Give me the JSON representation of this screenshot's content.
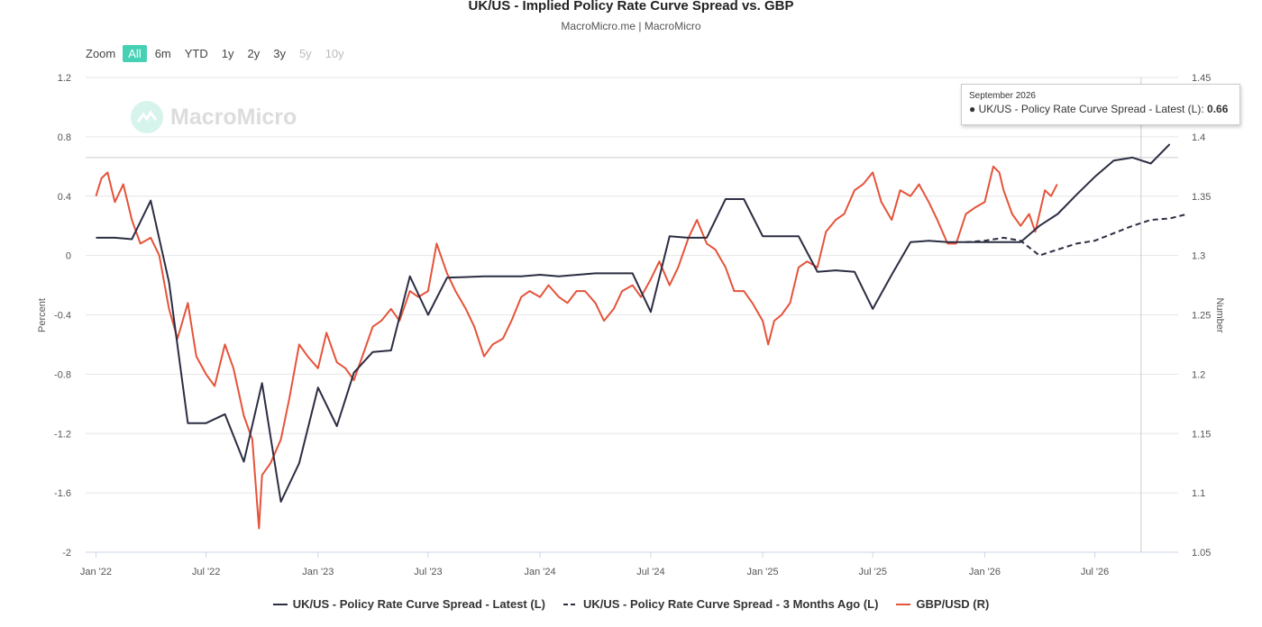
{
  "title": "UK/US - Implied Policy Rate Curve Spread vs. GBP",
  "subtitle": "MacroMicro.me | MacroMicro",
  "watermark": "MacroMicro",
  "zoom": {
    "label": "Zoom",
    "buttons": [
      {
        "label": "All",
        "state": "active"
      },
      {
        "label": "6m",
        "state": "enabled"
      },
      {
        "label": "YTD",
        "state": "enabled"
      },
      {
        "label": "1y",
        "state": "enabled"
      },
      {
        "label": "2y",
        "state": "enabled"
      },
      {
        "label": "3y",
        "state": "enabled"
      },
      {
        "label": "5y",
        "state": "disabled"
      },
      {
        "label": "10y",
        "state": "disabled"
      }
    ]
  },
  "tooltip": {
    "date": "September 2026",
    "series": "UK/US - Policy Rate Curve Spread - Latest (L):",
    "value": "0.66"
  },
  "colors": {
    "latest": "#2b2d42",
    "ago": "#2b2d42",
    "gbp": "#e5533a",
    "accent": "#47d1b4"
  },
  "chart_data": {
    "type": "line",
    "title": "UK/US - Implied Policy Rate Curve Spread vs. GBP",
    "ylabel_left": "Percent",
    "ylabel_right": "Number",
    "ylim_left": [
      -2,
      1.2
    ],
    "ylim_right": [
      1.05,
      1.45
    ],
    "xlim": [
      "2021-12-15",
      "2026-11-15"
    ],
    "grid": true,
    "legend_position": "bottom",
    "yticks_left": [
      "1.2",
      "0.8",
      "0.4",
      "0",
      "-0.4",
      "-0.8",
      "-1.2",
      "-1.6",
      "-2"
    ],
    "yticks_right": [
      "1.45",
      "1.4",
      "1.35",
      "1.3",
      "1.25",
      "1.2",
      "1.15",
      "1.1",
      "1.05"
    ],
    "xticks": [
      {
        "label": "Jan '22",
        "date": "2022-01-01"
      },
      {
        "label": "Jul '22",
        "date": "2022-07-01"
      },
      {
        "label": "Jan '23",
        "date": "2023-01-01"
      },
      {
        "label": "Jul '23",
        "date": "2023-07-01"
      },
      {
        "label": "Jan '24",
        "date": "2024-01-01"
      },
      {
        "label": "Jul '24",
        "date": "2024-07-01"
      },
      {
        "label": "Jan '25",
        "date": "2025-01-01"
      },
      {
        "label": "Jul '25",
        "date": "2025-07-01"
      },
      {
        "label": "Jan '26",
        "date": "2026-01-01"
      },
      {
        "label": "Jul '26",
        "date": "2026-07-01"
      }
    ],
    "crosshair_date": "2026-09-15",
    "series": [
      {
        "name": "UK/US - Policy Rate Curve Spread - Latest (L)",
        "axis": "left",
        "style": "solid",
        "points": [
          [
            "2022-01-01",
            0.12
          ],
          [
            "2022-02-01",
            0.12
          ],
          [
            "2022-03-01",
            0.11
          ],
          [
            "2022-04-01",
            0.37
          ],
          [
            "2022-05-01",
            -0.18
          ],
          [
            "2022-06-01",
            -1.13
          ],
          [
            "2022-07-01",
            -1.13
          ],
          [
            "2022-08-01",
            -1.07
          ],
          [
            "2022-09-01",
            -1.39
          ],
          [
            "2022-10-01",
            -0.86
          ],
          [
            "2022-11-01",
            -1.66
          ],
          [
            "2022-12-01",
            -1.4
          ],
          [
            "2023-01-01",
            -0.89
          ],
          [
            "2023-02-01",
            -1.15
          ],
          [
            "2023-03-01",
            -0.79
          ],
          [
            "2023-04-01",
            -0.65
          ],
          [
            "2023-05-01",
            -0.64
          ],
          [
            "2023-06-01",
            -0.14
          ],
          [
            "2023-07-01",
            -0.4
          ],
          [
            "2023-08-01",
            -0.15
          ],
          [
            "2023-10-01",
            -0.14
          ],
          [
            "2023-12-01",
            -0.14
          ],
          [
            "2024-01-01",
            -0.13
          ],
          [
            "2024-02-01",
            -0.14
          ],
          [
            "2024-04-01",
            -0.12
          ],
          [
            "2024-06-01",
            -0.12
          ],
          [
            "2024-07-01",
            -0.38
          ],
          [
            "2024-08-01",
            0.13
          ],
          [
            "2024-09-01",
            0.12
          ],
          [
            "2024-10-01",
            0.12
          ],
          [
            "2024-11-01",
            0.38
          ],
          [
            "2024-12-01",
            0.38
          ],
          [
            "2025-01-01",
            0.13
          ],
          [
            "2025-02-01",
            0.13
          ],
          [
            "2025-03-01",
            0.13
          ],
          [
            "2025-04-01",
            -0.11
          ],
          [
            "2025-05-01",
            -0.1
          ],
          [
            "2025-06-01",
            -0.11
          ],
          [
            "2025-07-01",
            -0.36
          ],
          [
            "2025-08-01",
            -0.13
          ],
          [
            "2025-09-01",
            0.09
          ],
          [
            "2025-10-01",
            0.1
          ],
          [
            "2025-11-01",
            0.09
          ],
          [
            "2025-12-01",
            0.09
          ],
          [
            "2026-01-01",
            0.09
          ],
          [
            "2026-02-01",
            0.09
          ],
          [
            "2026-03-01",
            0.09
          ],
          [
            "2026-04-01",
            0.2
          ],
          [
            "2026-05-01",
            0.28
          ],
          [
            "2026-06-01",
            0.41
          ],
          [
            "2026-07-01",
            0.53
          ],
          [
            "2026-08-01",
            0.64
          ],
          [
            "2026-09-01",
            0.66
          ],
          [
            "2026-10-01",
            0.62
          ],
          [
            "2026-11-01",
            0.75
          ]
        ]
      },
      {
        "name": "UK/US - Policy Rate Curve Spread - 3 Months Ago (L)",
        "axis": "left",
        "style": "dashed",
        "points": [
          [
            "2025-12-01",
            0.09
          ],
          [
            "2026-01-01",
            0.1
          ],
          [
            "2026-02-01",
            0.12
          ],
          [
            "2026-03-01",
            0.1
          ],
          [
            "2026-04-01",
            0.0
          ],
          [
            "2026-05-01",
            0.04
          ],
          [
            "2026-06-01",
            0.08
          ],
          [
            "2026-07-01",
            0.1
          ],
          [
            "2026-08-01",
            0.15
          ],
          [
            "2026-09-01",
            0.2
          ],
          [
            "2026-10-01",
            0.24
          ],
          [
            "2026-11-01",
            0.25
          ],
          [
            "2026-12-01",
            0.28
          ]
        ]
      },
      {
        "name": "GBP/USD (R)",
        "axis": "right",
        "style": "solid",
        "points": [
          [
            "2022-01-01",
            1.35
          ],
          [
            "2022-01-10",
            1.365
          ],
          [
            "2022-01-20",
            1.37
          ],
          [
            "2022-02-01",
            1.345
          ],
          [
            "2022-02-15",
            1.36
          ],
          [
            "2022-03-01",
            1.33
          ],
          [
            "2022-03-15",
            1.31
          ],
          [
            "2022-04-01",
            1.315
          ],
          [
            "2022-04-15",
            1.3
          ],
          [
            "2022-05-01",
            1.255
          ],
          [
            "2022-05-15",
            1.23
          ],
          [
            "2022-06-01",
            1.26
          ],
          [
            "2022-06-15",
            1.215
          ],
          [
            "2022-07-01",
            1.2
          ],
          [
            "2022-07-15",
            1.19
          ],
          [
            "2022-08-01",
            1.225
          ],
          [
            "2022-08-15",
            1.205
          ],
          [
            "2022-09-01",
            1.165
          ],
          [
            "2022-09-15",
            1.145
          ],
          [
            "2022-09-26",
            1.07
          ],
          [
            "2022-10-01",
            1.115
          ],
          [
            "2022-10-15",
            1.125
          ],
          [
            "2022-11-01",
            1.145
          ],
          [
            "2022-11-15",
            1.18
          ],
          [
            "2022-12-01",
            1.225
          ],
          [
            "2022-12-15",
            1.215
          ],
          [
            "2023-01-01",
            1.205
          ],
          [
            "2023-01-15",
            1.235
          ],
          [
            "2023-02-01",
            1.21
          ],
          [
            "2023-02-15",
            1.205
          ],
          [
            "2023-03-01",
            1.195
          ],
          [
            "2023-03-15",
            1.215
          ],
          [
            "2023-04-01",
            1.24
          ],
          [
            "2023-04-15",
            1.245
          ],
          [
            "2023-05-01",
            1.255
          ],
          [
            "2023-05-15",
            1.245
          ],
          [
            "2023-06-01",
            1.27
          ],
          [
            "2023-06-15",
            1.265
          ],
          [
            "2023-07-01",
            1.27
          ],
          [
            "2023-07-15",
            1.31
          ],
          [
            "2023-08-01",
            1.285
          ],
          [
            "2023-08-15",
            1.27
          ],
          [
            "2023-09-01",
            1.255
          ],
          [
            "2023-09-15",
            1.24
          ],
          [
            "2023-10-01",
            1.215
          ],
          [
            "2023-10-15",
            1.225
          ],
          [
            "2023-11-01",
            1.23
          ],
          [
            "2023-11-15",
            1.245
          ],
          [
            "2023-12-01",
            1.265
          ],
          [
            "2023-12-15",
            1.27
          ],
          [
            "2024-01-01",
            1.265
          ],
          [
            "2024-01-15",
            1.275
          ],
          [
            "2024-02-01",
            1.265
          ],
          [
            "2024-02-15",
            1.26
          ],
          [
            "2024-03-01",
            1.27
          ],
          [
            "2024-03-15",
            1.27
          ],
          [
            "2024-04-01",
            1.26
          ],
          [
            "2024-04-15",
            1.245
          ],
          [
            "2024-05-01",
            1.255
          ],
          [
            "2024-05-15",
            1.27
          ],
          [
            "2024-06-01",
            1.275
          ],
          [
            "2024-06-15",
            1.265
          ],
          [
            "2024-07-01",
            1.28
          ],
          [
            "2024-07-15",
            1.295
          ],
          [
            "2024-08-01",
            1.275
          ],
          [
            "2024-08-15",
            1.29
          ],
          [
            "2024-09-01",
            1.315
          ],
          [
            "2024-09-15",
            1.33
          ],
          [
            "2024-10-01",
            1.31
          ],
          [
            "2024-10-15",
            1.305
          ],
          [
            "2024-11-01",
            1.29
          ],
          [
            "2024-11-15",
            1.27
          ],
          [
            "2024-12-01",
            1.27
          ],
          [
            "2024-12-15",
            1.26
          ],
          [
            "2025-01-01",
            1.245
          ],
          [
            "2025-01-10",
            1.225
          ],
          [
            "2025-01-20",
            1.245
          ],
          [
            "2025-02-01",
            1.25
          ],
          [
            "2025-02-15",
            1.26
          ],
          [
            "2025-03-01",
            1.29
          ],
          [
            "2025-03-15",
            1.295
          ],
          [
            "2025-04-01",
            1.29
          ],
          [
            "2025-04-15",
            1.32
          ],
          [
            "2025-05-01",
            1.33
          ],
          [
            "2025-05-15",
            1.335
          ],
          [
            "2025-06-01",
            1.355
          ],
          [
            "2025-06-15",
            1.36
          ],
          [
            "2025-07-01",
            1.37
          ],
          [
            "2025-07-15",
            1.345
          ],
          [
            "2025-08-01",
            1.33
          ],
          [
            "2025-08-15",
            1.355
          ],
          [
            "2025-09-01",
            1.35
          ],
          [
            "2025-09-15",
            1.36
          ],
          [
            "2025-10-01",
            1.345
          ],
          [
            "2025-10-15",
            1.33
          ],
          [
            "2025-11-01",
            1.31
          ],
          [
            "2025-11-15",
            1.31
          ],
          [
            "2025-12-01",
            1.335
          ],
          [
            "2025-12-15",
            1.34
          ],
          [
            "2026-01-01",
            1.345
          ],
          [
            "2026-01-15",
            1.375
          ],
          [
            "2026-01-25",
            1.37
          ],
          [
            "2026-02-01",
            1.355
          ],
          [
            "2026-02-15",
            1.335
          ],
          [
            "2026-03-01",
            1.325
          ],
          [
            "2026-03-15",
            1.335
          ],
          [
            "2026-03-25",
            1.32
          ],
          [
            "2026-04-01",
            1.335
          ],
          [
            "2026-04-10",
            1.355
          ],
          [
            "2026-04-20",
            1.35
          ],
          [
            "2026-04-30",
            1.36
          ]
        ]
      }
    ]
  }
}
